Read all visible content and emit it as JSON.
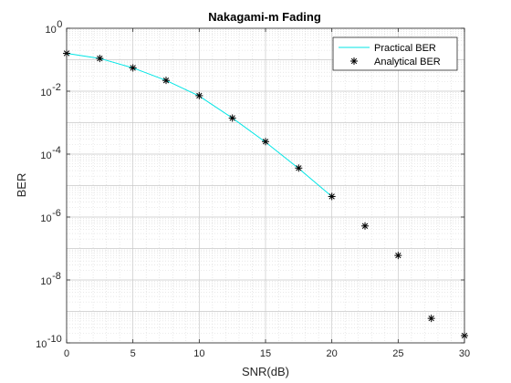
{
  "chart_data": {
    "type": "line",
    "title": "Nakagami-m Fading",
    "xlabel": "SNR(dB)",
    "ylabel": "BER",
    "xlim": [
      0,
      30
    ],
    "ylim": [
      1e-10,
      1
    ],
    "yscale": "log",
    "grid": true,
    "minor_grid": true,
    "legend_position": "top-right",
    "xticks": [
      0,
      5,
      10,
      15,
      20,
      25,
      30
    ],
    "xtick_labels": [
      "0",
      "5",
      "10",
      "15",
      "20",
      "25",
      "30"
    ],
    "yticks": [
      {
        "value": 1e-10,
        "base": "10",
        "exp": "-10"
      },
      {
        "value": 1e-08,
        "base": "10",
        "exp": "-8"
      },
      {
        "value": 1e-06,
        "base": "10",
        "exp": "-6"
      },
      {
        "value": 0.0001,
        "base": "10",
        "exp": "-4"
      },
      {
        "value": 0.01,
        "base": "10",
        "exp": "-2"
      },
      {
        "value": 1,
        "base": "10",
        "exp": "0"
      }
    ],
    "series": [
      {
        "name": "Practical BER",
        "style": "line",
        "color": "#00e5e5",
        "x": [
          0,
          2.5,
          5,
          7.5,
          10,
          12.5,
          15,
          17.5,
          20
        ],
        "y": [
          0.16,
          0.11,
          0.055,
          0.022,
          0.007,
          0.0014,
          0.00024,
          3.5e-05,
          4.5e-06
        ]
      },
      {
        "name": "Analytical BER",
        "style": "marker",
        "marker": "asterisk",
        "color": "#000000",
        "x": [
          0,
          2.5,
          5,
          7.5,
          10,
          12.5,
          15,
          17.5,
          20,
          22.5,
          25,
          27.5,
          30
        ],
        "y": [
          0.16,
          0.11,
          0.055,
          0.022,
          0.0072,
          0.0014,
          0.00025,
          3.6e-05,
          4.5e-06,
          5.2e-07,
          6e-08,
          6e-10,
          1.7e-10
        ]
      }
    ]
  }
}
